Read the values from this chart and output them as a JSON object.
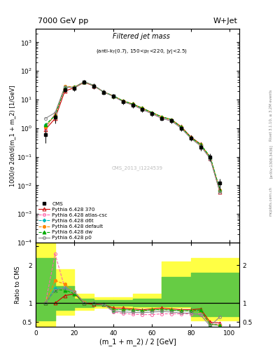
{
  "title_left": "7000 GeV pp",
  "title_right": "W+Jet",
  "watermark": "CMS_2013_I1224539",
  "xlabel": "(m_1 + m_2) / 2 [GeV]",
  "ylabel_main": "1000/σ 2dσ/d(m_1 + m_2) [1/GeV]",
  "ylabel_ratio": "Ratio to CMS",
  "rivet_label": "Rivet 3.1.10, ≥ 3.2M events",
  "arxiv_label": "[arXiv:1306.3436]",
  "mcplots_label": "mcplots.cern.ch",
  "xlim": [
    0,
    105
  ],
  "ylim_main": [
    0.0001,
    3000
  ],
  "ylim_ratio": [
    0.38,
    2.6
  ],
  "x_cms": [
    5,
    10,
    15,
    20,
    25,
    30,
    35,
    40,
    45,
    50,
    55,
    60,
    65,
    70,
    75,
    80,
    85,
    90,
    95
  ],
  "y_cms": [
    0.6,
    2.5,
    22.0,
    25.0,
    42.0,
    30.0,
    18.0,
    13.0,
    8.5,
    6.5,
    4.5,
    3.2,
    2.2,
    1.8,
    1.0,
    0.45,
    0.22,
    0.1,
    0.012
  ],
  "cms_yerr_lo": [
    0.3,
    1.0,
    4.0,
    5.0,
    8.0,
    6.0,
    3.5,
    2.5,
    1.7,
    1.3,
    0.9,
    0.6,
    0.4,
    0.35,
    0.2,
    0.1,
    0.06,
    0.03,
    0.005
  ],
  "cms_yerr_hi": [
    0.3,
    1.0,
    4.0,
    5.0,
    8.0,
    6.0,
    3.5,
    2.5,
    1.7,
    1.3,
    0.9,
    0.6,
    0.4,
    0.35,
    0.2,
    0.1,
    0.06,
    0.03,
    0.005
  ],
  "series": [
    {
      "label": "Pythia 6.428 370",
      "color": "#cc0000",
      "linestyle": "-",
      "marker": "^",
      "markerfill": "none",
      "x": [
        5,
        10,
        15,
        20,
        25,
        30,
        35,
        40,
        45,
        50,
        55,
        60,
        65,
        70,
        75,
        80,
        85,
        90,
        95
      ],
      "y": [
        0.9,
        2.2,
        20.0,
        26.0,
        40.0,
        30.0,
        18.5,
        13.5,
        9.0,
        7.0,
        5.0,
        3.5,
        2.5,
        2.0,
        1.15,
        0.5,
        0.28,
        0.09,
        0.006
      ],
      "ratio": [
        1.0,
        1.0,
        1.2,
        1.25,
        1.0,
        0.97,
        0.97,
        0.87,
        0.87,
        0.85,
        0.83,
        0.85,
        0.87,
        0.85,
        0.83,
        0.83,
        0.85,
        0.5,
        0.48
      ]
    },
    {
      "label": "Pythia 6.428 atlas-csc",
      "color": "#ff66aa",
      "linestyle": "--",
      "marker": "o",
      "markerfill": "none",
      "x": [
        5,
        10,
        15,
        20,
        25,
        30,
        35,
        40,
        45,
        50,
        55,
        60,
        65,
        70,
        75,
        80,
        85,
        90,
        95
      ],
      "y": [
        1.0,
        3.2,
        25.0,
        28.0,
        42.0,
        31.0,
        18.5,
        13.0,
        8.5,
        6.5,
        4.5,
        3.2,
        2.2,
        1.8,
        1.05,
        0.46,
        0.26,
        0.09,
        0.006
      ],
      "ratio": [
        1.0,
        2.3,
        1.4,
        1.3,
        1.02,
        1.0,
        0.97,
        0.77,
        0.73,
        0.71,
        0.7,
        0.7,
        0.72,
        0.72,
        0.72,
        0.72,
        0.72,
        0.46,
        0.44
      ]
    },
    {
      "label": "Pythia 6.428 d6t",
      "color": "#00bbbb",
      "linestyle": "--",
      "marker": "D",
      "markerfill": "#00bbbb",
      "x": [
        5,
        10,
        15,
        20,
        25,
        30,
        35,
        40,
        45,
        50,
        55,
        60,
        65,
        70,
        75,
        80,
        85,
        90,
        95
      ],
      "y": [
        1.3,
        2.8,
        27.0,
        27.0,
        42.0,
        31.0,
        18.5,
        13.5,
        9.0,
        7.0,
        5.0,
        3.5,
        2.5,
        2.0,
        1.1,
        0.48,
        0.27,
        0.1,
        0.007
      ],
      "ratio": [
        1.0,
        1.4,
        1.4,
        1.3,
        1.02,
        1.0,
        0.97,
        0.83,
        0.83,
        0.82,
        0.8,
        0.82,
        0.83,
        0.82,
        0.8,
        0.8,
        0.8,
        0.44,
        0.42
      ]
    },
    {
      "label": "Pythia 6.428 default",
      "color": "#ff8800",
      "linestyle": "--",
      "marker": "o",
      "markerfill": "#ff8800",
      "x": [
        5,
        10,
        15,
        20,
        25,
        30,
        35,
        40,
        45,
        50,
        55,
        60,
        65,
        70,
        75,
        80,
        85,
        90,
        95
      ],
      "y": [
        1.1,
        2.9,
        30.0,
        27.0,
        42.0,
        31.0,
        18.5,
        13.5,
        9.0,
        7.0,
        5.0,
        3.5,
        2.5,
        2.0,
        1.1,
        0.48,
        0.27,
        0.1,
        0.007
      ],
      "ratio": [
        1.0,
        1.6,
        1.5,
        1.3,
        1.02,
        1.0,
        0.97,
        0.83,
        0.83,
        0.82,
        0.8,
        0.82,
        0.83,
        0.82,
        0.8,
        0.8,
        0.8,
        0.44,
        0.42
      ]
    },
    {
      "label": "Pythia 6.428 dw",
      "color": "#00aa00",
      "linestyle": "--",
      "marker": "^",
      "markerfill": "#00aa00",
      "x": [
        5,
        10,
        15,
        20,
        25,
        30,
        35,
        40,
        45,
        50,
        55,
        60,
        65,
        70,
        75,
        80,
        85,
        90,
        95
      ],
      "y": [
        1.3,
        2.8,
        27.0,
        27.0,
        42.0,
        31.0,
        18.5,
        13.5,
        9.0,
        7.0,
        5.0,
        3.5,
        2.5,
        2.0,
        1.1,
        0.48,
        0.27,
        0.1,
        0.007
      ],
      "ratio": [
        1.0,
        1.35,
        1.35,
        1.25,
        1.0,
        1.0,
        0.97,
        0.83,
        0.83,
        0.82,
        0.8,
        0.83,
        0.83,
        0.82,
        0.8,
        0.8,
        0.82,
        0.44,
        0.42
      ]
    },
    {
      "label": "Pythia 6.428 p0",
      "color": "#888888",
      "linestyle": "-",
      "marker": "o",
      "markerfill": "none",
      "x": [
        5,
        10,
        15,
        20,
        25,
        30,
        35,
        40,
        45,
        50,
        55,
        60,
        65,
        70,
        75,
        80,
        85,
        90,
        95
      ],
      "y": [
        2.2,
        3.5,
        28.0,
        26.0,
        42.0,
        31.0,
        18.5,
        13.0,
        8.5,
        6.5,
        4.5,
        3.2,
        2.2,
        1.8,
        1.0,
        0.44,
        0.24,
        0.085,
        0.006
      ],
      "ratio": [
        1.0,
        1.35,
        1.4,
        1.3,
        1.0,
        1.0,
        0.97,
        0.79,
        0.77,
        0.76,
        0.75,
        0.77,
        0.78,
        0.77,
        0.74,
        0.74,
        0.69,
        0.4,
        0.64
      ]
    }
  ],
  "band_x_edges": [
    0,
    10,
    20,
    30,
    40,
    50,
    65,
    80,
    90,
    105
  ],
  "band_yellow_low": [
    0.38,
    0.7,
    0.83,
    0.88,
    0.88,
    0.88,
    0.88,
    0.55,
    0.55
  ],
  "band_yellow_high": [
    2.6,
    1.9,
    1.25,
    1.15,
    1.15,
    1.25,
    2.1,
    2.2,
    2.2
  ],
  "band_green_low": [
    0.55,
    0.82,
    0.9,
    0.93,
    0.93,
    0.92,
    0.92,
    0.65,
    0.65
  ],
  "band_green_high": [
    2.2,
    1.45,
    1.12,
    1.08,
    1.08,
    1.12,
    1.7,
    1.8,
    1.8
  ]
}
